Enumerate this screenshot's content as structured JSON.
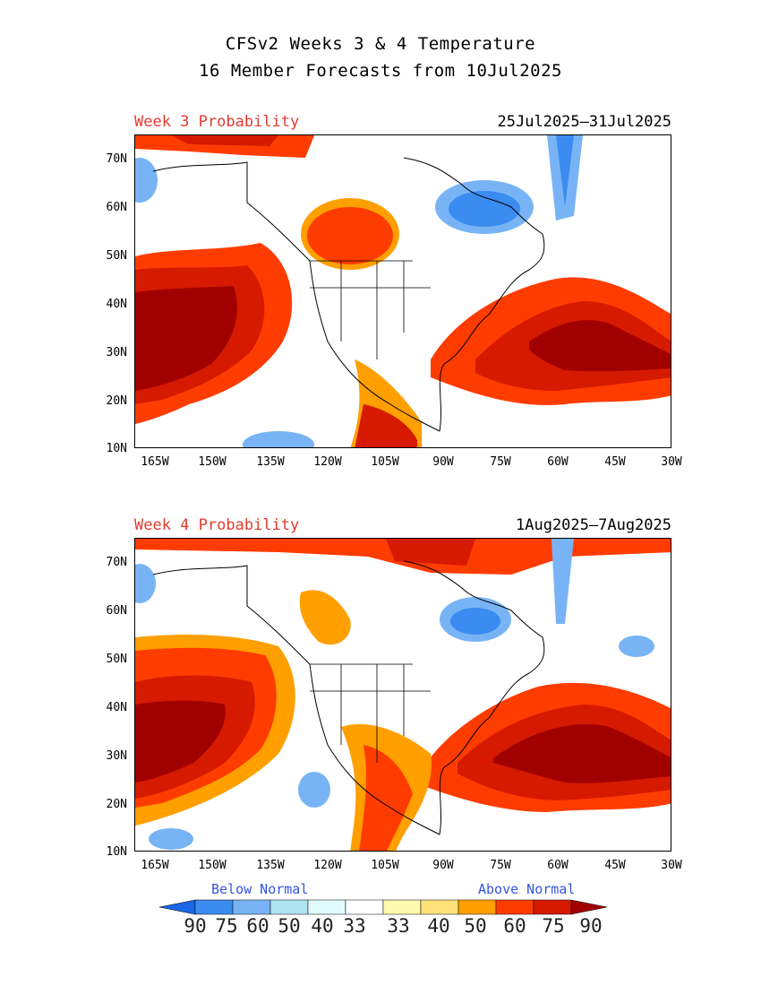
{
  "title": {
    "line1": "CFSv2 Weeks 3 & 4 Temperature",
    "line2": "16 Member Forecasts from 10Jul2025"
  },
  "panels": [
    {
      "label": "Week 3 Probability",
      "dates": "25Jul2025–31Jul2025"
    },
    {
      "label": "Week 4 Probability",
      "dates": "1Aug2025–7Aug2025"
    }
  ],
  "axes": {
    "lat_labels": [
      "70N",
      "60N",
      "50N",
      "40N",
      "30N",
      "20N",
      "10N"
    ],
    "lon_labels": [
      "165W",
      "150W",
      "135W",
      "120W",
      "105W",
      "90W",
      "75W",
      "60W",
      "45W",
      "30W"
    ]
  },
  "legend": {
    "below_label": "Below Normal",
    "above_label": "Above Normal",
    "values": [
      "90",
      "75",
      "60",
      "50",
      "40",
      "33",
      "33",
      "40",
      "50",
      "60",
      "75",
      "90"
    ],
    "colors": [
      "#1a66e6",
      "#3a8cf0",
      "#78b4f5",
      "#aee3f2",
      "#e0fbfc",
      "#ffffff",
      "#fffab0",
      "#ffe27a",
      "#ff9f00",
      "#ff3c00",
      "#d61a00",
      "#a10000"
    ]
  }
}
